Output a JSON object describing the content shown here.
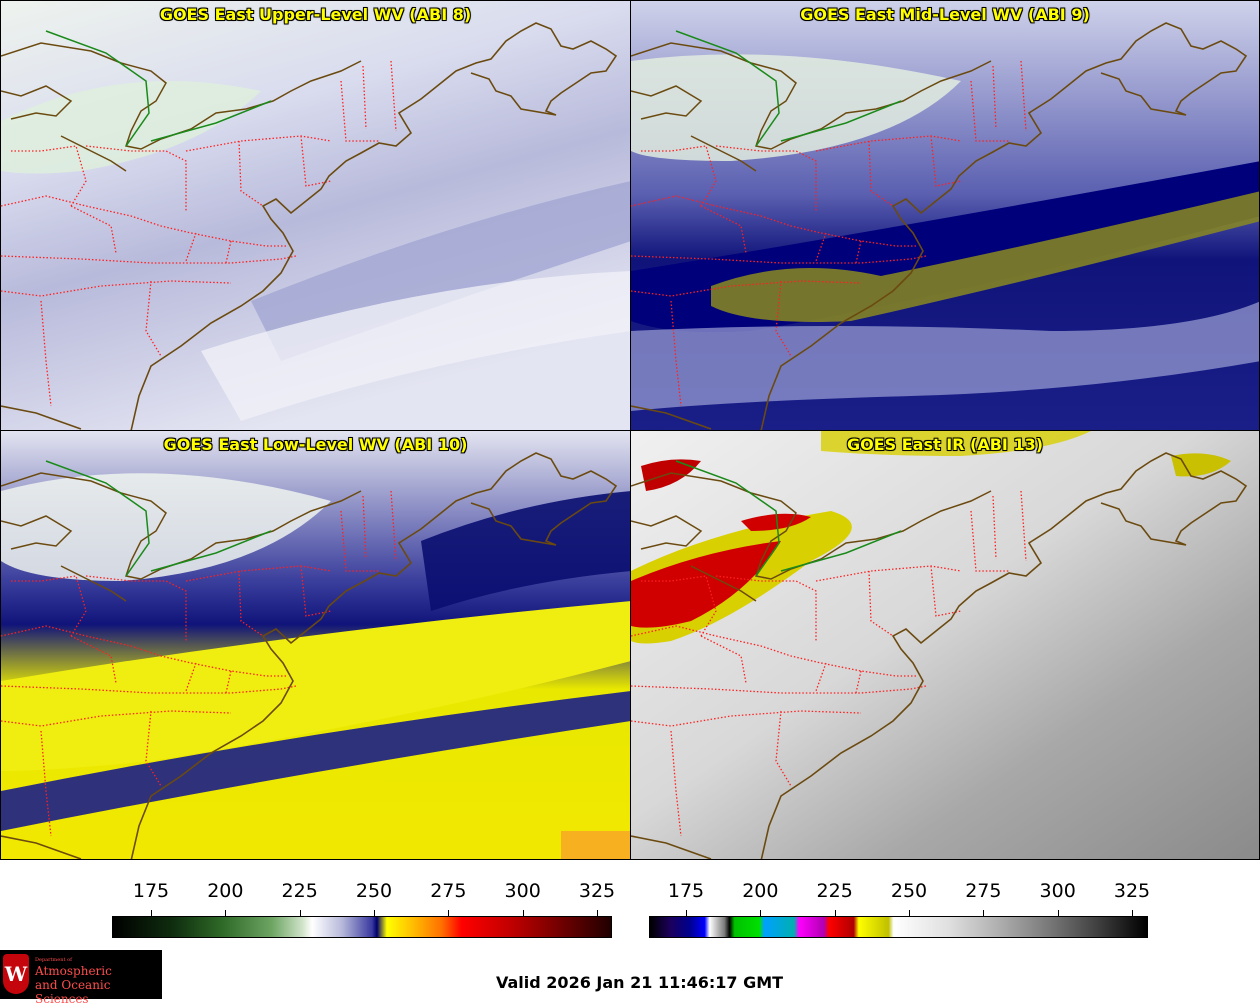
{
  "panels": [
    {
      "id": "p1",
      "title": "GOES East Upper-Level WV (ABI 8)",
      "theme": "upper"
    },
    {
      "id": "p2",
      "title": "GOES East Mid-Level WV (ABI 9)",
      "theme": "mid"
    },
    {
      "id": "p3",
      "title": "GOES East Low-Level WV (ABI 10)",
      "theme": "low"
    },
    {
      "id": "p4",
      "title": "GOES East IR (ABI 13)",
      "theme": "ir"
    }
  ],
  "colorbars": [
    {
      "id": "wv-colorbar",
      "ticks": [
        "175",
        "200",
        "225",
        "250",
        "275",
        "300",
        "325"
      ]
    },
    {
      "id": "ir-colorbar",
      "ticks": [
        "175",
        "200",
        "225",
        "250",
        "275",
        "300",
        "325"
      ]
    }
  ],
  "valid_time": "Valid 2026 Jan 21 11:46:17 GMT",
  "logo": {
    "dept": "Department of",
    "line1": "Atmospheric",
    "line2": "and Oceanic Sciences",
    "shield_letter": "W"
  },
  "colors": {
    "title": "#ffff00",
    "state_borders": "#ff2020",
    "coastline": "#6b4a10",
    "intl_border": "#1a8a1a"
  }
}
